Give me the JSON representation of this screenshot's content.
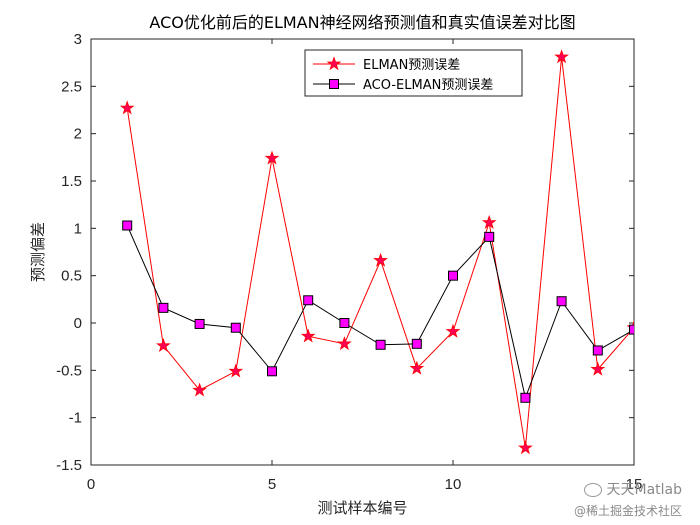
{
  "chart_data": {
    "type": "line",
    "title": "ACO优化前后的ELMAN神经网络预测值和真实值误差对比图",
    "xlabel": "测试样本编号",
    "ylabel": "预测偏差",
    "xlim": [
      0,
      15
    ],
    "ylim": [
      -1.5,
      3
    ],
    "xticks": [
      0,
      5,
      10,
      15
    ],
    "yticks": [
      -1.5,
      -1,
      -0.5,
      0,
      0.5,
      1,
      1.5,
      2,
      2.5,
      3
    ],
    "xtick_labels": [
      "0",
      "5",
      "10",
      "15"
    ],
    "ytick_labels": [
      "-1.5",
      "-1",
      "-0.5",
      "0",
      "0.5",
      "1",
      "1.5",
      "2",
      "2.5",
      "3"
    ],
    "grid": false,
    "legend_position": "top-center",
    "x": [
      1,
      2,
      3,
      4,
      5,
      6,
      7,
      8,
      9,
      10,
      11,
      12,
      13,
      14,
      15
    ],
    "series": [
      {
        "name": "ELMAN预测误差",
        "color": "#ff0000",
        "marker": "star",
        "marker_color": "#ff0055",
        "values": [
          2.27,
          -0.24,
          -0.71,
          -0.51,
          1.74,
          -0.14,
          -0.22,
          0.66,
          -0.48,
          -0.09,
          1.06,
          -1.32,
          2.81,
          -0.49,
          -0.05
        ]
      },
      {
        "name": "ACO-ELMAN预测误差",
        "color": "#000000",
        "marker": "square",
        "marker_color": "#ff00ff",
        "values": [
          1.03,
          0.16,
          -0.01,
          -0.05,
          -0.51,
          0.24,
          0.0,
          -0.23,
          -0.22,
          0.5,
          0.91,
          -0.79,
          0.23,
          -0.29,
          -0.07
        ]
      }
    ]
  },
  "watermark": {
    "line1": "天天Matlab",
    "line2": "@稀土掘金技术社区",
    "icon": "wechat-icon"
  }
}
